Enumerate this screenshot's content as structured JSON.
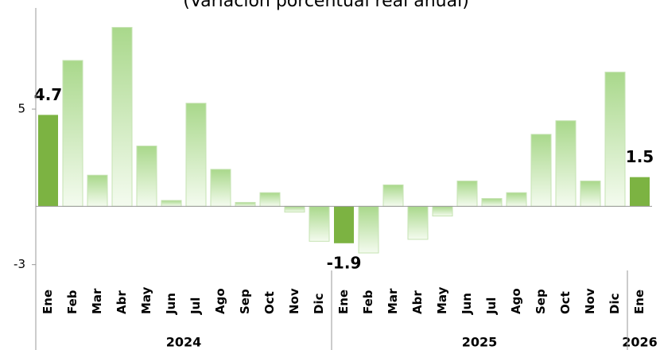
{
  "chart_data": {
    "type": "bar",
    "title": "(Variación porcentual real anual)",
    "groups": [
      {
        "name": "2024",
        "categories": [
          "Ene",
          "Feb",
          "Mar",
          "Abr",
          "May",
          "Jun",
          "Jul",
          "Ago",
          "Sep",
          "Oct",
          "Nov",
          "Dic"
        ]
      },
      {
        "name": "2025",
        "categories": [
          "Ene",
          "Feb",
          "Mar",
          "Abr",
          "May",
          "Jun",
          "Jul",
          "Ago",
          "Sep",
          "Oct",
          "Nov",
          "Dic"
        ]
      },
      {
        "name": "2026",
        "categories": [
          "Ene"
        ]
      }
    ],
    "values": [
      4.7,
      7.5,
      1.6,
      9.2,
      3.1,
      0.3,
      5.3,
      1.9,
      0.2,
      0.7,
      -0.3,
      -1.8,
      -1.9,
      -2.4,
      1.1,
      -1.7,
      -0.5,
      1.3,
      0.4,
      0.7,
      3.7,
      4.4,
      1.3,
      6.9,
      1.5
    ],
    "value_labels": [
      "4.7",
      null,
      null,
      null,
      null,
      null,
      null,
      null,
      null,
      null,
      null,
      null,
      "-1.9",
      null,
      null,
      null,
      null,
      null,
      null,
      null,
      null,
      null,
      null,
      null,
      "1.5"
    ],
    "colors": [
      "#7cb342",
      "#a9d88b",
      "#a9d88b",
      "#a9d88b",
      "#a9d88b",
      "#a9d88b",
      "#a9d88b",
      "#a9d88b",
      "#a9d88b",
      "#a9d88b",
      "#a9d88b",
      "#a9d88b",
      "#7cb342",
      "#a9d88b",
      "#a9d88b",
      "#a9d88b",
      "#a9d88b",
      "#a9d88b",
      "#a9d88b",
      "#a9d88b",
      "#a9d88b",
      "#a9d88b",
      "#a9d88b",
      "#a9d88b",
      "#7cb342"
    ],
    "ylim": [
      -3.3,
      10.2
    ],
    "yticks": [
      -3,
      5
    ]
  }
}
